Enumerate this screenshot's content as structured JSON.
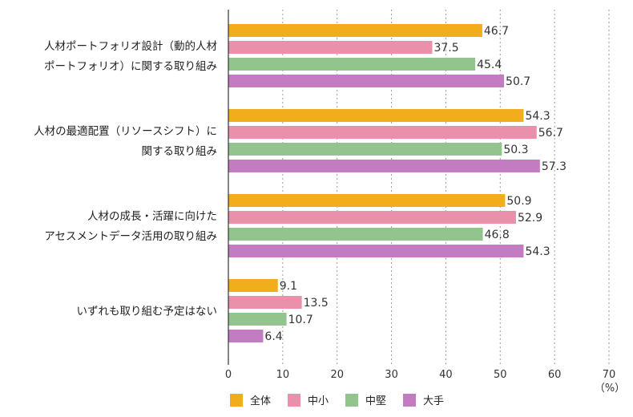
{
  "chart_data": {
    "type": "bar",
    "orientation": "horizontal",
    "categories": [
      [
        "人材ポートフォリオ設計（動的人材",
        "ポートフォリオ）に関する取り組み"
      ],
      [
        "人材の最適配置（リソースシフト）に",
        "関する取り組み"
      ],
      [
        "人材の成長・活躍に向けた",
        "アセスメントデータ活用の取り組み"
      ],
      [
        "いずれも取り組む予定はない"
      ]
    ],
    "series": [
      {
        "name": "全体",
        "color": "#f2ad1c",
        "values": [
          46.7,
          54.3,
          50.9,
          9.1
        ]
      },
      {
        "name": "中小",
        "color": "#ea90ab",
        "values": [
          37.5,
          56.7,
          52.9,
          13.5
        ]
      },
      {
        "name": "中堅",
        "color": "#93c48d",
        "values": [
          45.4,
          50.3,
          46.8,
          10.7
        ]
      },
      {
        "name": "大手",
        "color": "#c37cc2",
        "values": [
          50.7,
          57.3,
          54.3,
          6.4
        ]
      }
    ],
    "xlim": [
      0,
      70
    ],
    "xticks": [
      "0",
      "10",
      "20",
      "30",
      "40",
      "50",
      "60",
      "70"
    ],
    "unit_label": "（%）",
    "grid": "vertical dotted",
    "legend": "bottom-left"
  }
}
